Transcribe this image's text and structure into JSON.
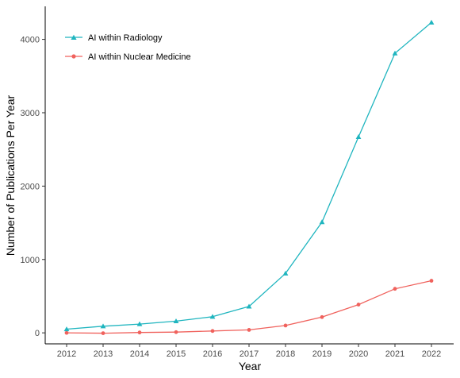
{
  "chart_data": {
    "type": "line",
    "xlabel": "Year",
    "ylabel": "Number of Publications Per Year",
    "x": [
      2012,
      2013,
      2014,
      2015,
      2016,
      2017,
      2018,
      2019,
      2020,
      2021,
      2022
    ],
    "x_ticks": [
      "2012",
      "2013",
      "2014",
      "2015",
      "2016",
      "2017",
      "2018",
      "2019",
      "2020",
      "2021",
      "2022"
    ],
    "y_ticks": [
      "0",
      "1000",
      "2000",
      "3000",
      "4000"
    ],
    "ylim": [
      -150,
      4450
    ],
    "grid": false,
    "legend_position": "top-left",
    "series": [
      {
        "name": "AI within Radiology",
        "marker": "triangle",
        "color": "#1FB5BF",
        "values": [
          50,
          90,
          120,
          160,
          220,
          360,
          810,
          1510,
          2670,
          3810,
          4230
        ]
      },
      {
        "name": "AI within Nuclear Medicine",
        "marker": "circle",
        "color": "#F0625D",
        "values": [
          0,
          -5,
          5,
          10,
          25,
          40,
          100,
          215,
          385,
          600,
          710
        ]
      }
    ]
  }
}
